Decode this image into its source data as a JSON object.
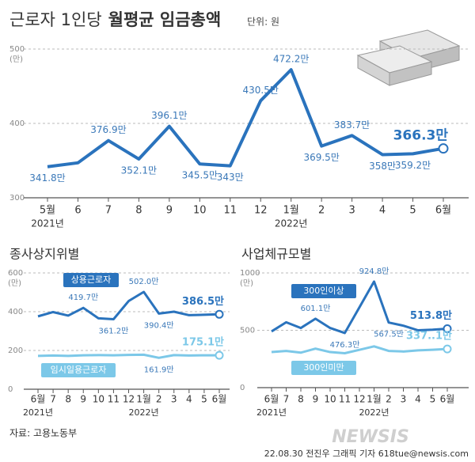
{
  "chart_data": [
    {
      "type": "line",
      "title": [
        "근로자 1인당",
        "월평균 임금총액"
      ],
      "unit": "단위: 원",
      "categories": [
        "5월",
        "6",
        "7",
        "8",
        "9",
        "10",
        "11",
        "12",
        "1월",
        "2",
        "3",
        "4",
        "5",
        "6월"
      ],
      "category_years": [
        "2021년",
        null,
        null,
        null,
        null,
        null,
        null,
        null,
        "2022년",
        null,
        null,
        null,
        null,
        null
      ],
      "ylim": [
        300,
        500
      ],
      "yticks": [
        300,
        400,
        500
      ],
      "y_unit_label": "(만)",
      "grid": true,
      "series": [
        {
          "name": "월평균 임금총액",
          "color": "#2a73bd",
          "values": [
            341.8,
            347,
            376.9,
            352.1,
            396.1,
            345.5,
            343,
            430.5,
            472.2,
            369.5,
            383.7,
            358,
            359.2,
            366.3
          ],
          "value_labels": [
            "341.8만",
            null,
            "376.9만",
            "352.1만",
            "396.1만",
            "345.5만",
            "343만",
            "430.5만",
            "472.2만",
            "369.5만",
            "383.7만",
            "358만",
            "359.2만",
            "366.3만"
          ]
        }
      ]
    },
    {
      "type": "line",
      "title": "종사상지위별",
      "categories": [
        "6월",
        "7",
        "8",
        "9",
        "10",
        "11",
        "12",
        "1월",
        "2",
        "3",
        "4",
        "5",
        "6월"
      ],
      "category_years": [
        "2021년",
        null,
        null,
        null,
        null,
        null,
        null,
        "2022년",
        null,
        null,
        null,
        null,
        null
      ],
      "ylim": [
        0,
        600
      ],
      "yticks": [
        0,
        200,
        400,
        600
      ],
      "y_unit_label": "(만)",
      "grid": true,
      "series": [
        {
          "name": "상용근로자",
          "color": "#2a73bd",
          "values": [
            376,
            398,
            380,
            419.7,
            366,
            361.2,
            455,
            502.0,
            390.4,
            400,
            382,
            384,
            386.5
          ],
          "value_labels": [
            null,
            null,
            null,
            "419.7만",
            null,
            "361.2만",
            null,
            "502.0만",
            "390.4만",
            null,
            null,
            null,
            "386.5만"
          ]
        },
        {
          "name": "임시일용근로자",
          "color": "#7cc8e8",
          "values": [
            172,
            174,
            172,
            175,
            176,
            175,
            177,
            178,
            161.9,
            176,
            174,
            175,
            175.1
          ],
          "value_labels": [
            null,
            null,
            null,
            null,
            null,
            null,
            null,
            null,
            "161.9만",
            null,
            null,
            null,
            "175.1만"
          ]
        }
      ]
    },
    {
      "type": "line",
      "title": "사업체규모별",
      "categories": [
        "6월",
        "7",
        "8",
        "9",
        "10",
        "11",
        "12",
        "1월",
        "2",
        "3",
        "4",
        "5",
        "6월"
      ],
      "category_years": [
        "2021년",
        null,
        null,
        null,
        null,
        null,
        null,
        "2022년",
        null,
        null,
        null,
        null,
        null
      ],
      "ylim": [
        0,
        1000
      ],
      "yticks": [
        0,
        500,
        1000
      ],
      "y_unit_label": "(만)",
      "grid": true,
      "series": [
        {
          "name": "300인이상",
          "color": "#2a73bd",
          "values": [
            490,
            570,
            520,
            601.1,
            520,
            476.3,
            700,
            924.8,
            567.5,
            540,
            500,
            505,
            513.8
          ],
          "value_labels": [
            null,
            null,
            null,
            "601.1만",
            null,
            "476.3만",
            null,
            "924.8만",
            "567.5만",
            null,
            null,
            null,
            "513.8만"
          ]
        },
        {
          "name": "300인미만",
          "color": "#7cc8e8",
          "values": [
            310,
            320,
            305,
            340,
            310,
            300,
            330,
            360,
            320,
            315,
            325,
            330,
            337.1
          ],
          "value_labels": [
            null,
            null,
            null,
            null,
            null,
            null,
            null,
            null,
            null,
            null,
            null,
            null,
            "337..1만"
          ]
        }
      ]
    }
  ],
  "footer": {
    "source": "자료: 고용노동부",
    "credit": "22.08.30 전진우 그래픽 기자 618tue@newsis.com",
    "logo": "NEWSIS"
  }
}
